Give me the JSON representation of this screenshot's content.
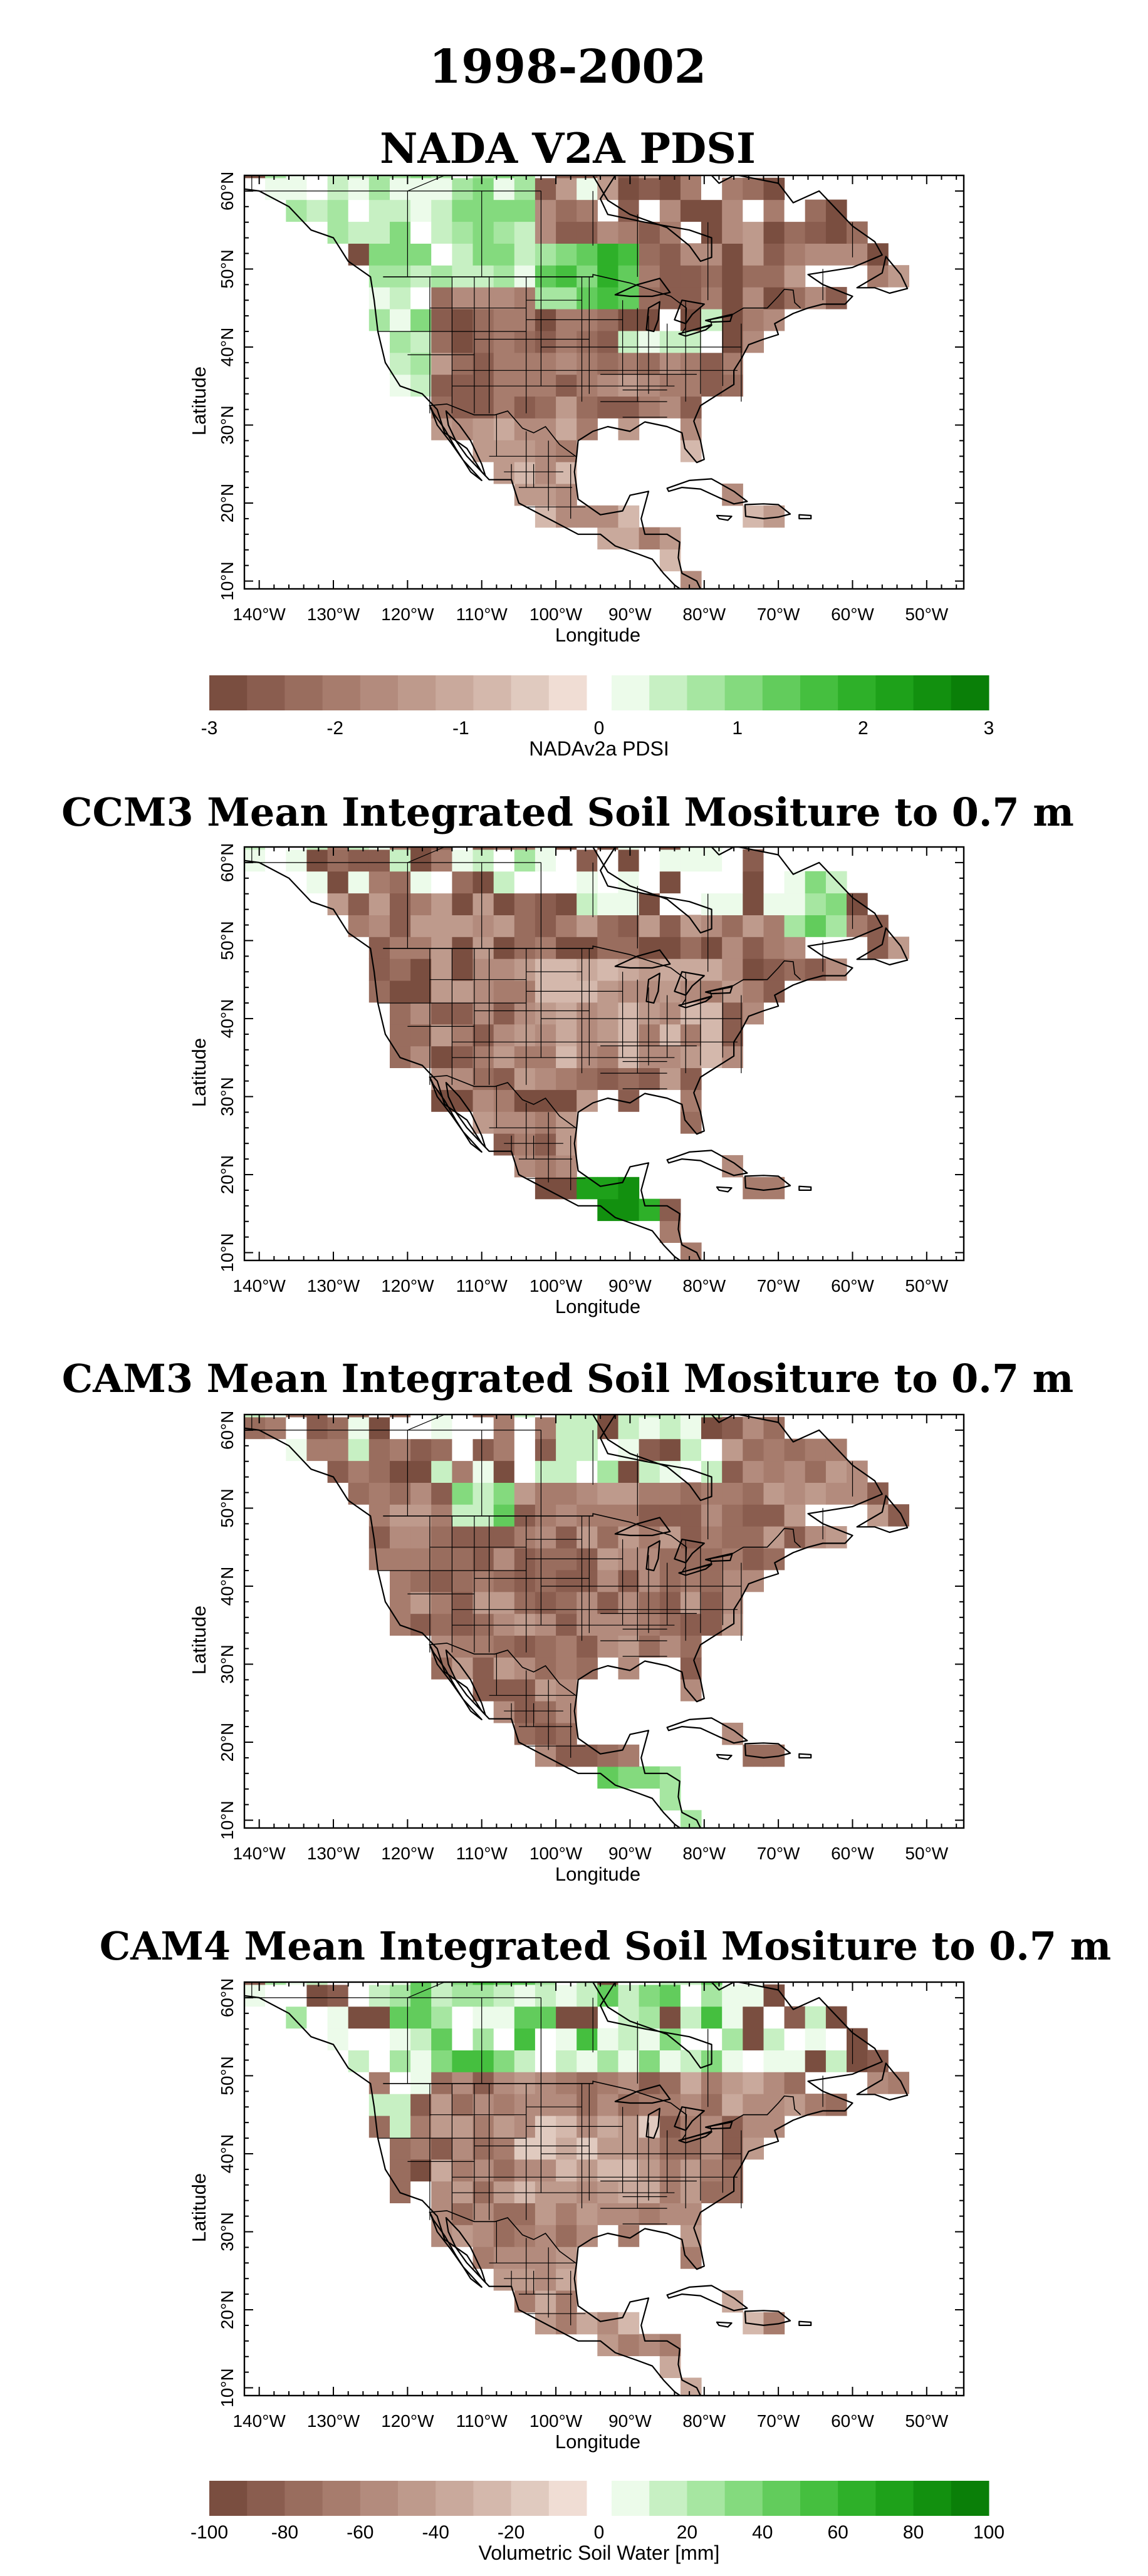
{
  "figure": {
    "title": "1998-2002"
  },
  "axes": {
    "xlabel": "Longitude",
    "ylabel": "Latitude",
    "lon_ticks": [
      "140°W",
      "130°W",
      "120°W",
      "110°W",
      "100°W",
      "90°W",
      "80°W",
      "70°W",
      "60°W",
      "50°W"
    ],
    "lat_ticks": [
      "10°N",
      "20°N",
      "30°N",
      "40°N",
      "50°N",
      "60°N"
    ],
    "lon_range": [
      -142,
      -45
    ],
    "lat_range": [
      9,
      62
    ]
  },
  "colors": {
    "dry": [
      "#7a4e40",
      "#8a5d4f",
      "#996d5e",
      "#a77c6d",
      "#b38b7d",
      "#be9a8c",
      "#c9a99c",
      "#d4b8ac",
      "#e0cabf",
      "#f0ddd4"
    ],
    "wet": [
      "#ecfbea",
      "#c7f0c3",
      "#a6e6a1",
      "#84da7e",
      "#62cc5c",
      "#45bf3f",
      "#2eb029",
      "#1ea11a",
      "#12900f",
      "#0a7f08"
    ],
    "coast": "#000000"
  },
  "panels": [
    {
      "title": "NADA V2A PDSI",
      "field": {
        "scheme": "pdsi",
        "seed": 11
      }
    },
    {
      "title": "CCM3 Mean Integrated Soil Mositure to 0.7 m",
      "field": {
        "scheme": "ccm3",
        "seed": 23
      }
    },
    {
      "title": "CAM3 Mean Integrated Soil Mositure to 0.7 m",
      "field": {
        "scheme": "cam3",
        "seed": 37
      }
    },
    {
      "title": "CAM4 Mean Integrated Soil Mositure to 0.7 m",
      "field": {
        "scheme": "cam4",
        "seed": 51
      }
    }
  ],
  "colorbars": [
    {
      "label": "NADAv2a PDSI",
      "ticks": [
        "-3",
        "-2",
        "-1",
        "0",
        "1",
        "2",
        "3"
      ]
    },
    {
      "label": "Volumetric Soil Water [mm]",
      "ticks": [
        "-100",
        "-80",
        "-60",
        "-40",
        "-20",
        "0",
        "20",
        "40",
        "60",
        "80",
        "100"
      ]
    }
  ]
}
